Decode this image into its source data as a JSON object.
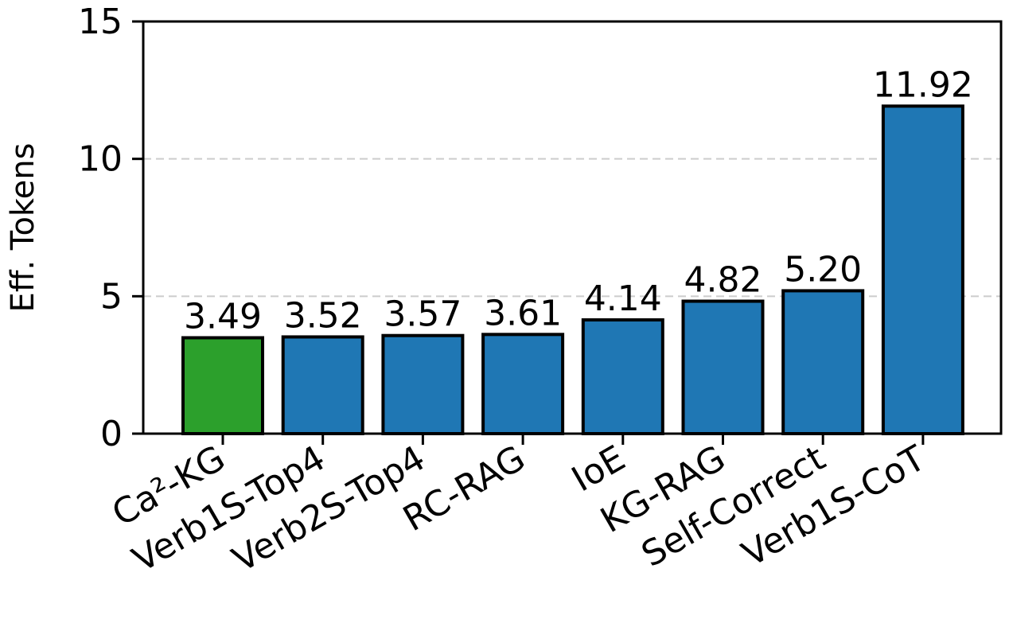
{
  "chart_data": {
    "type": "bar",
    "title": "",
    "xlabel": "",
    "ylabel": "Eff. Tokens",
    "ylim": [
      0,
      15
    ],
    "yticks": [
      0,
      5,
      10,
      15
    ],
    "grid": "horizontal dashed",
    "categories": [
      "Ca²-KG",
      "Verb1S-Top4",
      "Verb2S-Top4",
      "RC-RAG",
      "IoE",
      "KG-RAG",
      "Self-Correct",
      "Verb1S-CoT"
    ],
    "values": [
      3.49,
      3.52,
      3.57,
      3.61,
      4.14,
      4.82,
      5.2,
      11.92
    ],
    "value_labels": [
      "3.49",
      "3.52",
      "3.57",
      "3.61",
      "4.14",
      "4.82",
      "5.20",
      "11.92"
    ],
    "bar_colors": [
      "#2ca02c",
      "#1f77b4",
      "#1f77b4",
      "#1f77b4",
      "#1f77b4",
      "#1f77b4",
      "#1f77b4",
      "#1f77b4"
    ],
    "edge_color": "#000000",
    "grid_color": "#cccccc"
  }
}
